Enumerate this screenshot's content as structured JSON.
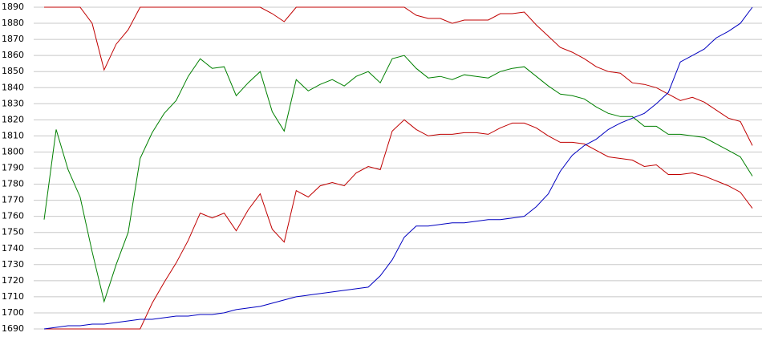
{
  "chart_data": {
    "type": "line",
    "categories": [
      null,
      null,
      null,
      null,
      null,
      null,
      null,
      null,
      null,
      null,
      null,
      null,
      null,
      null,
      null,
      null,
      null,
      null,
      null,
      null,
      null,
      null,
      null,
      null,
      null,
      null,
      null,
      null,
      null,
      null,
      null,
      null,
      null,
      null,
      null,
      null,
      null,
      null,
      null,
      null,
      null,
      null,
      null,
      null,
      null,
      null,
      null,
      null,
      null,
      null,
      null,
      null,
      null,
      null,
      null,
      null,
      null,
      null,
      null,
      null
    ],
    "series": [
      {
        "color": "#c00000",
        "values": [
          1890,
          1890,
          1890,
          1890,
          1880,
          1851,
          1867,
          1876,
          1890,
          1890,
          1890,
          1890,
          1890,
          1890,
          1890,
          1890,
          1890,
          1890,
          1890,
          1886,
          1881,
          1890,
          1890,
          1890,
          1890,
          1890,
          1890,
          1890,
          1890,
          1890,
          1890,
          1885,
          1883,
          1883,
          1880,
          1882,
          1882,
          1882,
          1886,
          1886,
          1887,
          1879,
          1872,
          1865,
          1862,
          1858,
          1853,
          1850,
          1849,
          1843,
          1842,
          1840,
          1836,
          1832,
          1834,
          1831,
          1826,
          1821,
          1819,
          1804
        ]
      },
      {
        "color": "#008000",
        "values": [
          1758,
          1814,
          1789,
          1772,
          1738,
          1707,
          1730,
          1750,
          1796,
          1812,
          1824,
          1832,
          1847,
          1858,
          1852,
          1853,
          1835,
          1843,
          1850,
          1825,
          1813,
          1845,
          1838,
          1842,
          1845,
          1841,
          1847,
          1850,
          1843,
          1858,
          1860,
          1852,
          1846,
          1847,
          1845,
          1848,
          1847,
          1846,
          1850,
          1852,
          1853,
          1847,
          1841,
          1836,
          1835,
          1833,
          1828,
          1824,
          1822,
          1822,
          1816,
          1816,
          1811,
          1811,
          1810,
          1809,
          1805,
          1801,
          1797,
          1785
        ]
      },
      {
        "color": "#c00000",
        "values": [
          1690,
          1690,
          1690,
          1690,
          1690,
          1690,
          1690,
          1690,
          1690,
          1706,
          1719,
          1731,
          1745,
          1762,
          1759,
          1762,
          1751,
          1764,
          1774,
          1752,
          1744,
          1776,
          1772,
          1779,
          1781,
          1779,
          1787,
          1791,
          1789,
          1813,
          1820,
          1814,
          1810,
          1811,
          1811,
          1812,
          1812,
          1811,
          1815,
          1818,
          1818,
          1815,
          1810,
          1806,
          1806,
          1805,
          1801,
          1797,
          1796,
          1795,
          1791,
          1792,
          1786,
          1786,
          1787,
          1785,
          1782,
          1779,
          1775,
          1765
        ]
      },
      {
        "color": "#0000c0",
        "values": [
          1690,
          1691,
          1692,
          1692,
          1693,
          1693,
          1694,
          1695,
          1696,
          1696,
          1697,
          1698,
          1698,
          1699,
          1699,
          1700,
          1702,
          1703,
          1704,
          1706,
          1708,
          1710,
          1711,
          1712,
          1713,
          1714,
          1715,
          1716,
          1723,
          1733,
          1747,
          1754,
          1754,
          1755,
          1756,
          1756,
          1757,
          1758,
          1758,
          1759,
          1760,
          1766,
          1774,
          1788,
          1798,
          1804,
          1808,
          1814,
          1818,
          1821,
          1824,
          1830,
          1837,
          1856,
          1860,
          1864,
          1871,
          1875,
          1880,
          1890
        ]
      }
    ],
    "ylim": [
      1690,
      1890
    ],
    "yticks": [
      1690,
      1700,
      1710,
      1720,
      1730,
      1740,
      1750,
      1760,
      1770,
      1780,
      1790,
      1800,
      1810,
      1820,
      1830,
      1840,
      1850,
      1860,
      1870,
      1880,
      1890
    ],
    "grid": true
  }
}
